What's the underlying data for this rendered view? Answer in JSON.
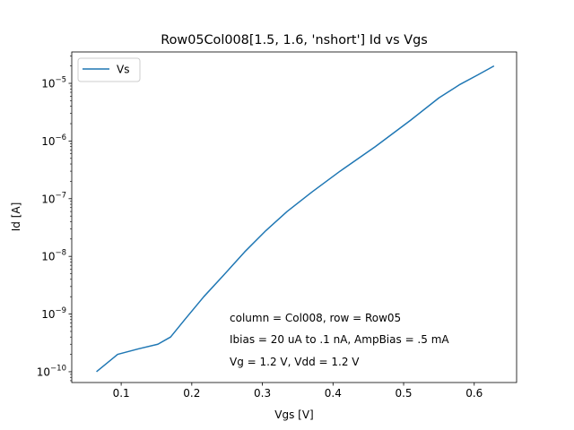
{
  "chart_data": {
    "type": "line",
    "title": "Row05Col008[1.5, 1.6, 'nshort'] Id vs Vgs",
    "xlabel": "Vgs [V]",
    "ylabel": "Id [A]",
    "yscale": "log",
    "xlim": [
      0.03,
      0.66
    ],
    "ylim": [
      6.5e-11,
      3.5e-05
    ],
    "xticks": [
      0.1,
      0.2,
      0.3,
      0.4,
      0.5,
      0.6
    ],
    "xtick_labels": [
      "0.1",
      "0.2",
      "0.3",
      "0.4",
      "0.5",
      "0.6"
    ],
    "yticks": [
      {
        "value": 1e-10,
        "base": "10",
        "exp": "−10"
      },
      {
        "value": 1e-09,
        "base": "10",
        "exp": "−9"
      },
      {
        "value": 1e-08,
        "base": "10",
        "exp": "−8"
      },
      {
        "value": 1e-07,
        "base": "10",
        "exp": "−7"
      },
      {
        "value": 1e-06,
        "base": "10",
        "exp": "−6"
      },
      {
        "value": 1e-05,
        "base": "10",
        "exp": "−5"
      }
    ],
    "legend_position": "top-left",
    "grid": false,
    "series": [
      {
        "name": "Vs",
        "color": "#1f77b4",
        "x": [
          0.065,
          0.095,
          0.125,
          0.152,
          0.17,
          0.19,
          0.217,
          0.245,
          0.275,
          0.305,
          0.335,
          0.37,
          0.41,
          0.46,
          0.51,
          0.55,
          0.58,
          0.605,
          0.628
        ],
        "y": [
          1e-10,
          2e-10,
          2.5e-10,
          3e-10,
          4e-10,
          8e-10,
          2e-09,
          4.7e-09,
          1.2e-08,
          2.8e-08,
          6e-08,
          1.3e-07,
          3e-07,
          8e-07,
          2.3e-06,
          5.6e-06,
          9.6e-06,
          1.4e-05,
          2e-05
        ]
      }
    ],
    "annotations": [
      "column = Col008, row = Row05",
      "Ibias = 20 uA to .1 nA, AmpBias = .5 mA",
      "Vg = 1.2 V, Vdd = 1.2 V"
    ]
  }
}
